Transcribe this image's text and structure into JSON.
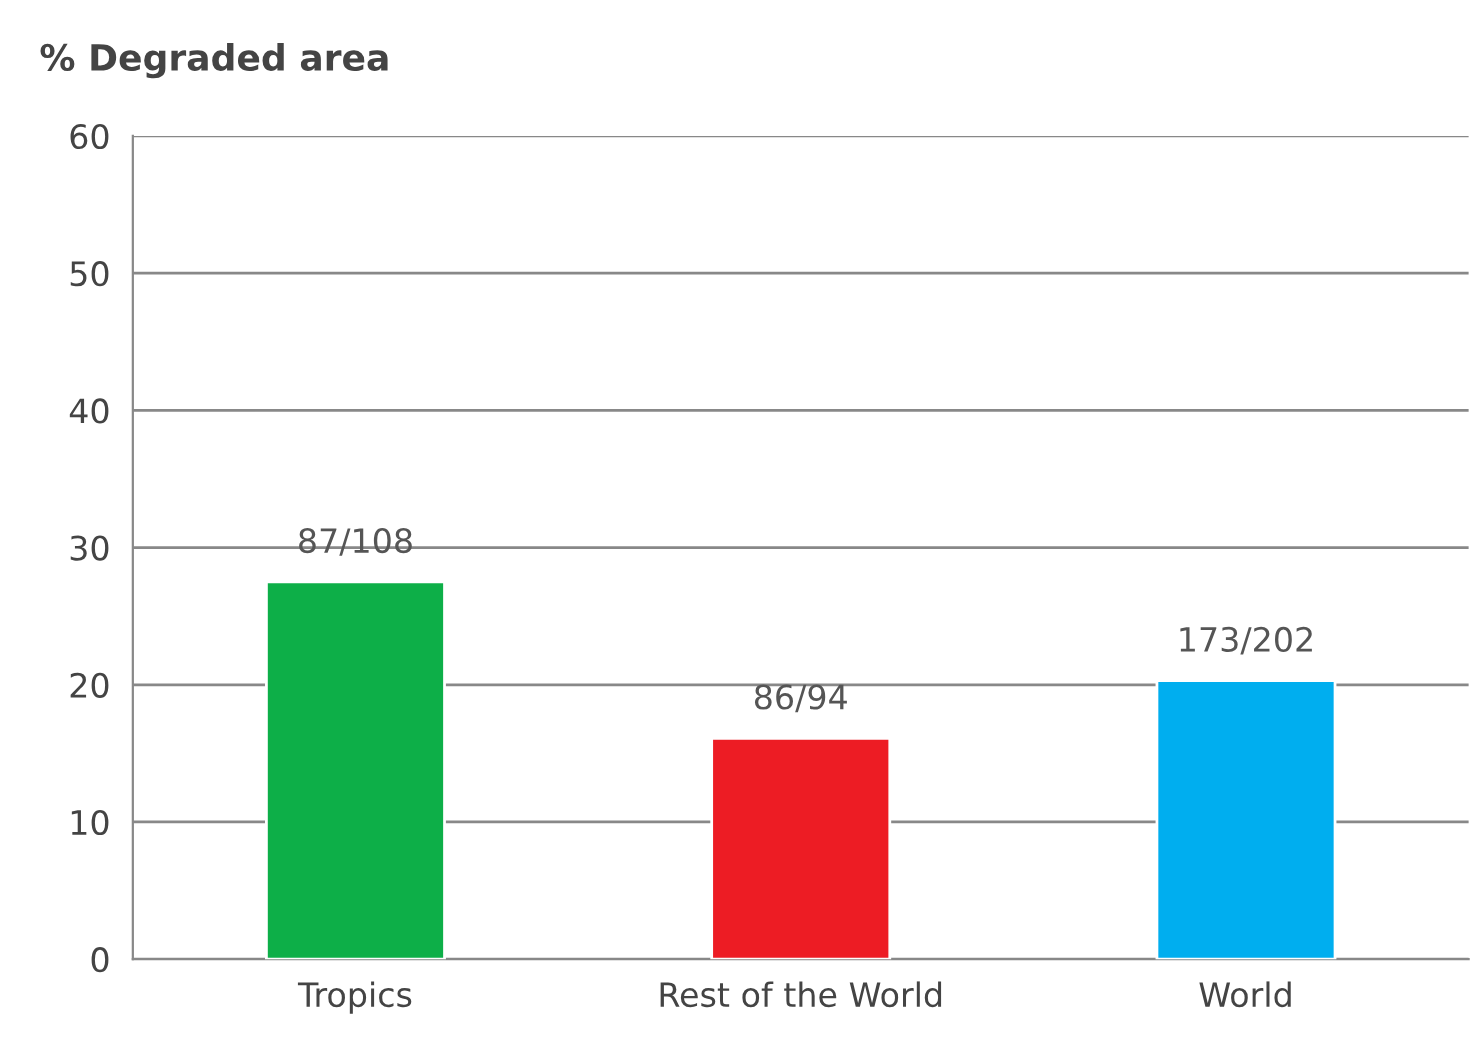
{
  "chart_data": {
    "type": "bar",
    "ylabel": "% Degraded area",
    "categories": [
      "Tropics",
      "Rest of the World",
      "World"
    ],
    "values": [
      27.5,
      16.1,
      20.3
    ],
    "colors": [
      "#0daf48",
      "#ed1c24",
      "#00aeef"
    ],
    "value_labels": [
      "87/108",
      "86/94",
      "173/202"
    ],
    "ylim": [
      0,
      60
    ],
    "yticks": [
      0,
      10,
      20,
      30,
      40,
      50,
      60
    ],
    "grid": "y",
    "legend": false
  }
}
